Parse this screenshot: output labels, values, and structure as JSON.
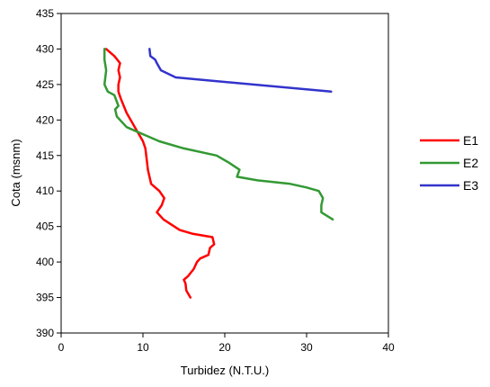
{
  "chart_data": {
    "type": "line",
    "title": "",
    "xlabel": "Turbidez (N.T.U.)",
    "ylabel": "Cota (msnm)",
    "xlim": [
      0,
      40
    ],
    "ylim": [
      390,
      435
    ],
    "xticks": [
      "0",
      "10",
      "20",
      "30",
      "40"
    ],
    "yticks": [
      "390",
      "395",
      "400",
      "405",
      "410",
      "415",
      "420",
      "425",
      "430",
      "435"
    ],
    "grid": false,
    "legend_position": "right",
    "series": [
      {
        "name": "E1",
        "color": "#ff0000",
        "x": [
          5.5,
          6.5,
          7.2,
          7.0,
          7.2,
          7.0,
          7.0,
          7.3,
          8.0,
          9.0,
          10.0,
          10.3,
          10.5,
          10.6,
          11.0,
          12.0,
          12.6,
          12.3,
          11.7,
          12.5,
          14.5,
          16.0,
          18.5,
          18.7,
          18.2,
          18.0,
          17.0,
          16.6,
          16.2,
          15.5,
          15.0,
          15.2,
          15.3,
          15.8
        ],
        "y": [
          430,
          429,
          428,
          427,
          426,
          425,
          424,
          423,
          421,
          419,
          417,
          416,
          414,
          413,
          411,
          410,
          409,
          408,
          407,
          406,
          404.5,
          404,
          403.5,
          402.5,
          402,
          401,
          400.5,
          400,
          399,
          398,
          397.5,
          397,
          396,
          395
        ]
      },
      {
        "name": "E2",
        "color": "#339933",
        "x": [
          5.3,
          5.3,
          5.5,
          5.3,
          5.7,
          6.5,
          7.0,
          6.6,
          6.8,
          7.2,
          8.0,
          9.0,
          10.0,
          12.0,
          15.0,
          19.0,
          20.5,
          21.8,
          21.5,
          24.0,
          28.0,
          30.0,
          31.5,
          32.0,
          31.8,
          31.8,
          33.2
        ],
        "y": [
          430,
          428.5,
          427,
          425,
          424,
          423.5,
          422,
          421.5,
          420.5,
          420,
          419,
          418.5,
          418,
          417,
          416,
          415,
          414,
          413,
          412,
          411.5,
          411,
          410.5,
          410,
          409,
          408,
          407,
          406
        ]
      },
      {
        "name": "E3",
        "color": "#3333cc",
        "x": [
          10.8,
          10.9,
          11.5,
          11.7,
          12.2,
          14.0,
          33.0
        ],
        "y": [
          430,
          429,
          428.5,
          428,
          427,
          426,
          424
        ]
      }
    ]
  }
}
